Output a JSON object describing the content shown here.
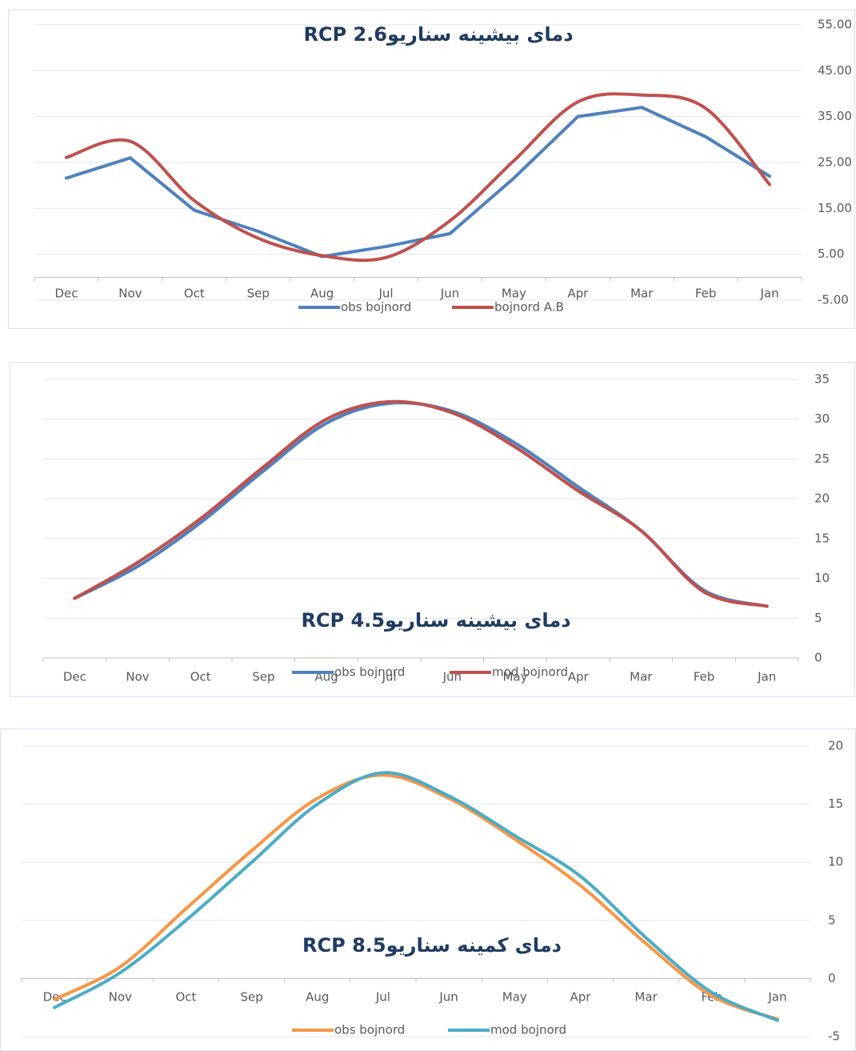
{
  "chart_data": [
    {
      "type": "line",
      "title": "دمای بیشینه سناریوRCP 2.6",
      "categories": [
        "Dec",
        "Nov",
        "Oct",
        "Sep",
        "Aug",
        "Jul",
        "Jun",
        "May",
        "Apr",
        "Mar",
        "Feb",
        "Jan"
      ],
      "series": [
        {
          "name": "obs bojnord",
          "color": "#4f81bd",
          "smooth": false,
          "values": [
            21.6,
            26,
            14.6,
            10,
            4.5,
            6.7,
            9.5,
            21.6,
            35,
            37,
            30.6,
            22
          ]
        },
        {
          "name": "bojnord A.B",
          "color": "#c0504d",
          "smooth": true,
          "values": [
            26.1,
            29.6,
            16.7,
            8.5,
            4.7,
            4.3,
            12.3,
            25.4,
            38.2,
            39.7,
            36.8,
            20.2
          ]
        }
      ],
      "ylim": [
        -5,
        55
      ],
      "yticks": [
        {
          "value": -5,
          "label": "-5.00"
        },
        {
          "value": 5,
          "label": "5.00"
        },
        {
          "value": 15,
          "label": "15.00"
        },
        {
          "value": 25,
          "label": "25.00"
        },
        {
          "value": 35,
          "label": "35.00"
        },
        {
          "value": 45,
          "label": "45.00"
        },
        {
          "value": 55,
          "label": "55.00"
        }
      ],
      "grid": true,
      "legend": "bottom"
    },
    {
      "type": "line",
      "title": "دمای بیشینه سناریوRCP 4.5",
      "categories": [
        "Dec",
        "Nov",
        "Oct",
        "Sep",
        "Aug",
        "Jul",
        "Jun",
        "May",
        "Apr",
        "Mar",
        "Feb",
        "Jan"
      ],
      "series": [
        {
          "name": "obs bojnord",
          "color": "#4f81bd",
          "smooth": true,
          "values": [
            7.5,
            11.5,
            17,
            23.5,
            29.5,
            32,
            31,
            27,
            21.5,
            16,
            8.5,
            6.5
          ]
        },
        {
          "name": "mod bojnord",
          "color": "#c0504d",
          "smooth": true,
          "values": [
            7.5,
            12,
            17.5,
            24,
            30,
            32.2,
            30.8,
            26.5,
            21,
            16,
            8.3,
            6.5
          ]
        }
      ],
      "ylim": [
        0,
        35
      ],
      "yticks": [
        0,
        5,
        10,
        15,
        20,
        25,
        30,
        35
      ],
      "grid": true,
      "legend": "bottom"
    },
    {
      "type": "line",
      "title": "دمای کمینه سناریوRCP 8.5",
      "categories": [
        "Dec",
        "Nov",
        "Oct",
        "Sep",
        "Aug",
        "Jul",
        "Jun",
        "May",
        "Apr",
        "Mar",
        "Feb",
        "Jan"
      ],
      "series": [
        {
          "name": "obs bojnord",
          "color": "#f79646",
          "smooth": true,
          "values": [
            -1.8,
            1,
            6,
            11,
            15.5,
            17.5,
            15.5,
            12,
            8,
            3,
            -1.5,
            -3.5
          ]
        },
        {
          "name": "mod bojnord",
          "color": "#4bacc6",
          "smooth": true,
          "values": [
            -2.5,
            0.5,
            5,
            10,
            15,
            17.7,
            15.7,
            12.3,
            8.8,
            3.5,
            -1.2,
            -3.6
          ]
        }
      ],
      "ylim": [
        -5,
        20
      ],
      "yticks": [
        -5,
        0,
        5,
        10,
        15,
        20
      ],
      "grid": true,
      "legend": "bottom"
    }
  ]
}
